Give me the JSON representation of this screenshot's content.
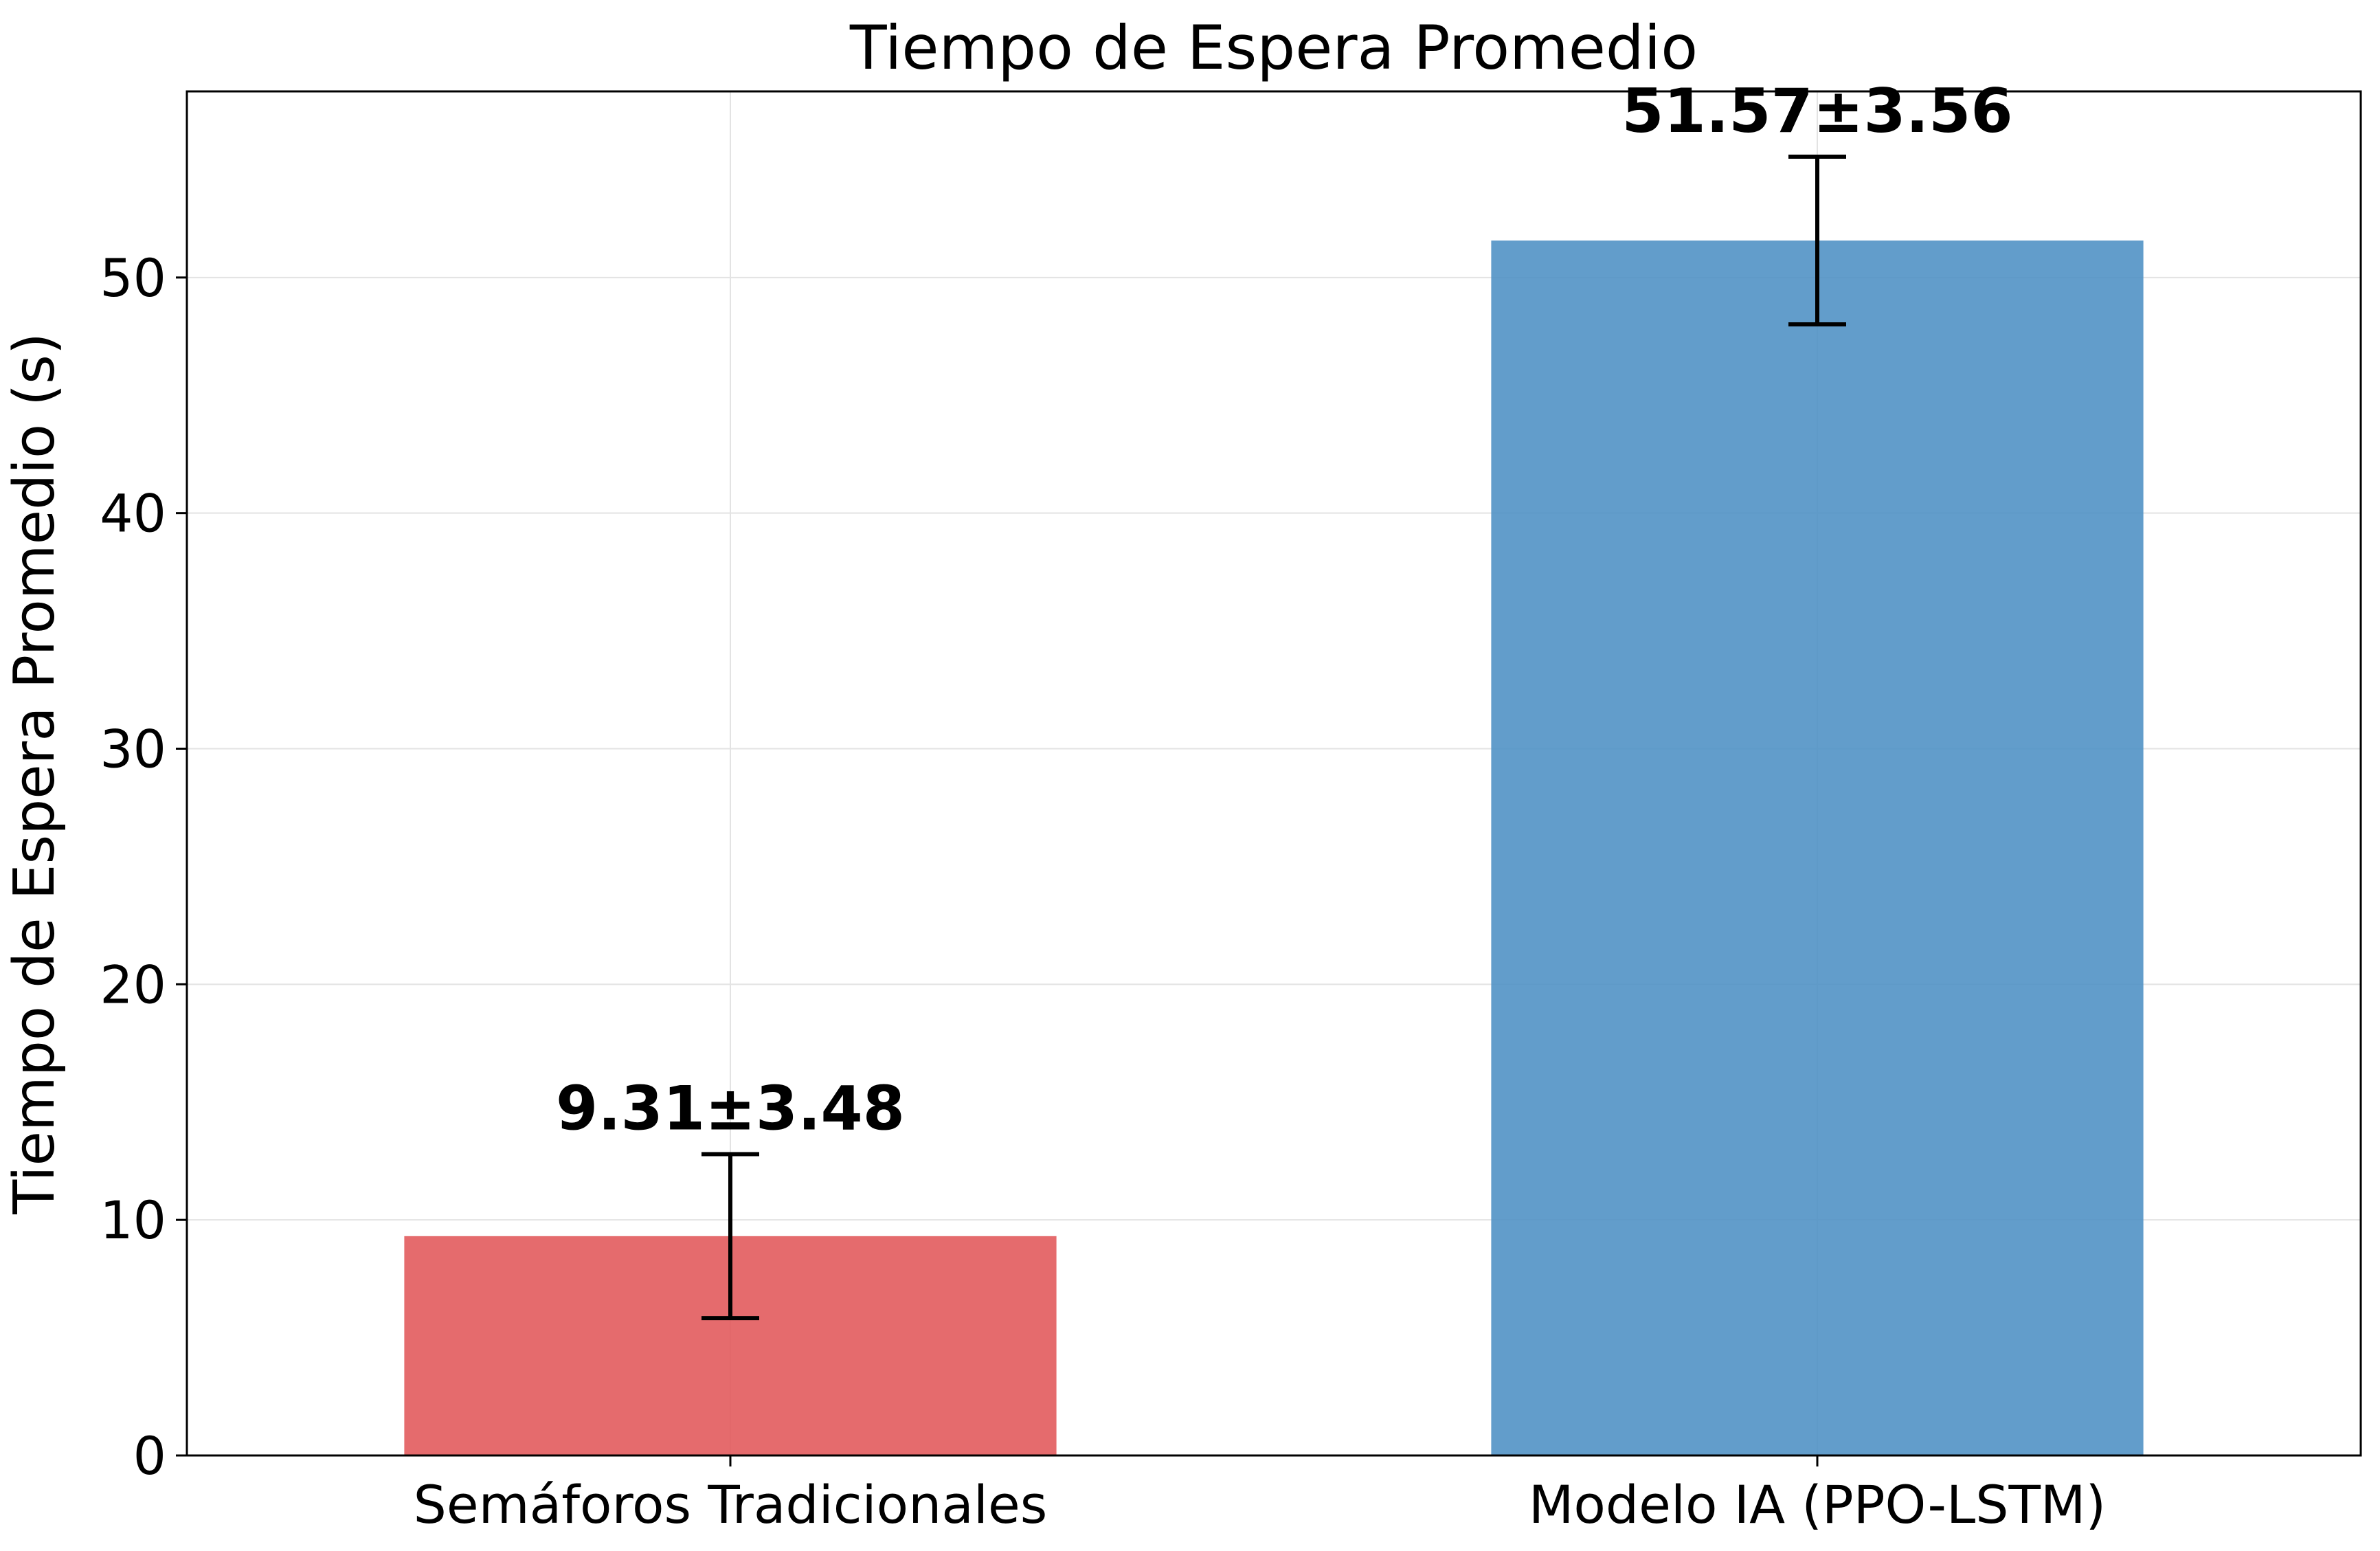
{
  "chart_data": {
    "type": "bar",
    "title": "Tiempo de Espera Promedio",
    "xlabel": "",
    "ylabel": "Tiempo de Espera Promedio (s)",
    "categories": [
      "Semáforos Tradicionales",
      "Modelo IA (PPO-LSTM)"
    ],
    "values": [
      9.31,
      51.57
    ],
    "errors": [
      3.48,
      3.56
    ],
    "data_labels": [
      "9.31±3.48",
      "51.57±3.56"
    ],
    "colors": [
      "#e15759",
      "#4c8fc4"
    ],
    "ylim": [
      0,
      57.9
    ],
    "yticks": [
      0,
      10,
      20,
      30,
      40,
      50
    ],
    "grid": true,
    "legend": false
  }
}
